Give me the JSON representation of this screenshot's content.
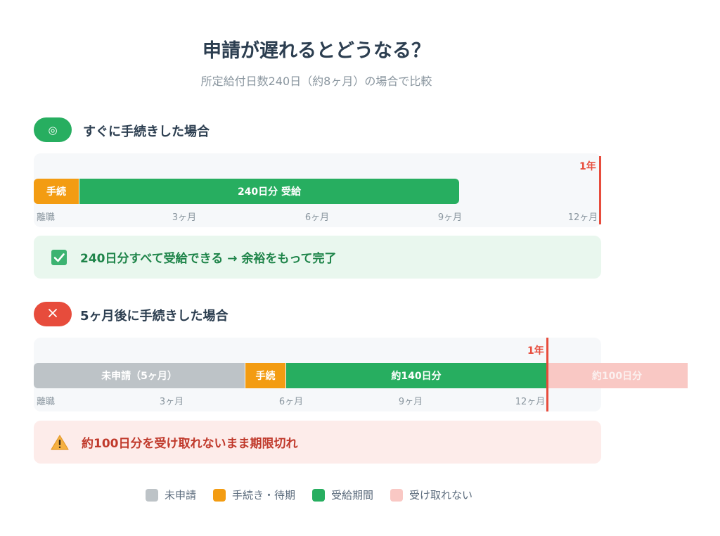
{
  "title": "申請が遅れるとどうなる？",
  "subtitle": "所定給付日数240日（約8ヶ月）の場合で比較",
  "scenario_good": {
    "badge": "◎",
    "title": "すぐに手続きした場合",
    "year_label": "1年",
    "bars": {
      "procedure": "手続",
      "receive": "240日分 受給"
    },
    "ticks": [
      "離職",
      "3ヶ月",
      "6ヶ月",
      "9ヶ月",
      "12ヶ月"
    ],
    "result": "240日分すべて受給できる → 余裕をもって完了"
  },
  "scenario_bad": {
    "title": "5ヶ月後に手続きした場合",
    "year_label": "1年",
    "bars": {
      "unapplied": "未申請（5ヶ月）",
      "procedure": "手続",
      "receive": "約140日分",
      "lost": "約100日分"
    },
    "ticks": [
      "離職",
      "3ヶ月",
      "6ヶ月",
      "9ヶ月",
      "12ヶ月"
    ],
    "result": "約100日分を受け取れないまま期限切れ"
  },
  "legend": [
    {
      "label": "未申請",
      "color": "#bdc3c7"
    },
    {
      "label": "手続き・待期",
      "color": "#f39c12"
    },
    {
      "label": "受給期間",
      "color": "#27ae60"
    },
    {
      "label": "受け取れない",
      "color": "#f9c8c4"
    }
  ],
  "colors": {
    "accent_green": "#27ae60",
    "accent_red": "#e74c3c",
    "orange": "#f39c12",
    "gray": "#bdc3c7"
  }
}
